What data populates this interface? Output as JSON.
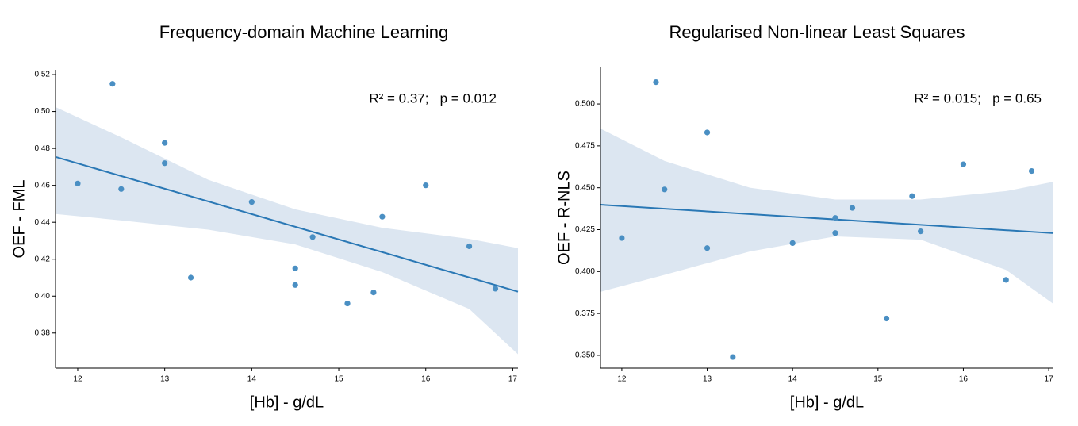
{
  "chart_data": [
    {
      "type": "scatter",
      "title": "Frequency-domain Machine Learning",
      "x_label": "[Hb] - g/dL",
      "y_label": "OEF - FML",
      "annotation": "R² = 0.37;   p = 0.012",
      "x": [
        12.0,
        12.4,
        12.5,
        13.0,
        13.0,
        13.3,
        14.0,
        14.5,
        14.5,
        14.7,
        15.1,
        15.4,
        15.5,
        16.0,
        16.5,
        16.8
      ],
      "y": [
        0.461,
        0.515,
        0.458,
        0.483,
        0.472,
        0.41,
        0.451,
        0.415,
        0.406,
        0.432,
        0.396,
        0.402,
        0.443,
        0.46,
        0.427,
        0.404
      ],
      "color": "#4a8fc3",
      "fit": {
        "x": [
          11.745,
          17.06
        ],
        "y": [
          0.4754,
          0.4024
        ],
        "color": "#2a78b5"
      },
      "band": {
        "x": [
          11.745,
          12.5,
          13.5,
          14.5,
          15.5,
          16.5,
          17.06
        ],
        "upper": [
          0.5024,
          0.486,
          0.463,
          0.447,
          0.437,
          0.431,
          0.426
        ],
        "lower": [
          0.4445,
          0.441,
          0.436,
          0.428,
          0.413,
          0.393,
          0.3685
        ],
        "color": "#dce6f1"
      },
      "xlim": [
        11.745,
        17.06
      ],
      "ylim": [
        0.361,
        0.5226
      ],
      "xticks": [
        12,
        13,
        14,
        15,
        16,
        17
      ],
      "yticks": [
        0.38,
        {
          "value": 0.4,
          "label": "0.40"
        },
        0.42,
        0.44,
        0.46,
        0.48,
        {
          "value": 0.5,
          "label": "0.50"
        },
        0.52
      ]
    },
    {
      "type": "scatter",
      "title": "Regularised Non-linear Least Squares",
      "x_label": "[Hb] - g/dL",
      "y_label": "OEF - R-NLS",
      "annotation": "R² = 0.015;   p = 0.65",
      "x": [
        12.0,
        12.4,
        12.5,
        13.0,
        13.0,
        13.3,
        14.0,
        14.5,
        14.5,
        14.7,
        15.1,
        15.4,
        15.5,
        16.0,
        16.5,
        16.8
      ],
      "y": [
        0.42,
        0.513,
        0.449,
        0.483,
        0.414,
        0.349,
        0.417,
        0.432,
        0.423,
        0.438,
        0.372,
        0.445,
        0.424,
        0.464,
        0.395,
        0.46
      ],
      "color": "#4a8fc3",
      "fit": {
        "x": [
          11.75,
          17.055
        ],
        "y": [
          0.4399,
          0.4229
        ],
        "color": "#2a78b5"
      },
      "band": {
        "x": [
          11.75,
          12.5,
          13.5,
          14.5,
          15.5,
          16.5,
          17.055
        ],
        "upper": [
          0.4853,
          0.466,
          0.45,
          0.443,
          0.443,
          0.448,
          0.4536
        ],
        "lower": [
          0.3879,
          0.398,
          0.412,
          0.421,
          0.419,
          0.401,
          0.3807
        ],
        "color": "#dce6f1"
      },
      "xlim": [
        11.75,
        17.055
      ],
      "ylim": [
        0.3424,
        0.5218
      ],
      "xticks": [
        12,
        13,
        14,
        15,
        16,
        17
      ],
      "yticks": [
        {
          "value": 0.35,
          "label": "0.350"
        },
        0.375,
        {
          "value": 0.4,
          "label": "0.400"
        },
        0.425,
        {
          "value": 0.45,
          "label": "0.450"
        },
        0.475,
        {
          "value": 0.5,
          "label": "0.500"
        }
      ]
    }
  ]
}
